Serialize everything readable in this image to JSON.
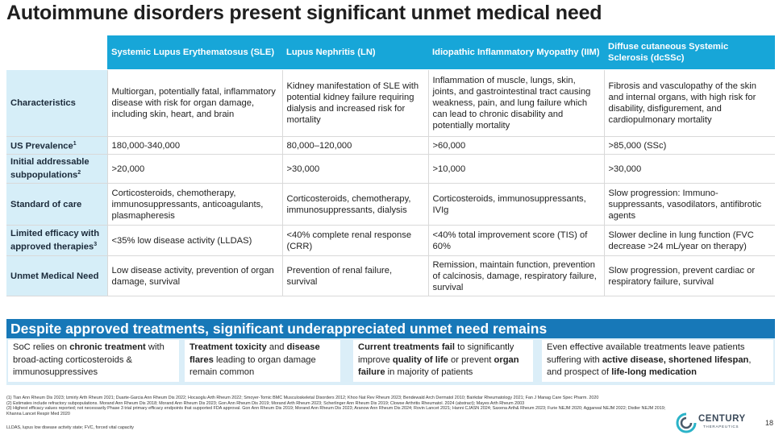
{
  "title": "Autoimmune disorders present significant unmet medical need",
  "table": {
    "headers": [
      "Systemic Lupus Erythematosus (SLE)",
      "Lupus Nephritis (LN)",
      "Idiopathic Inflammatory Myopathy (IIM)",
      "Diffuse cutaneous Systemic Sclerosis (dcSSc)"
    ],
    "rows": [
      {
        "label": "Characteristics",
        "cells": [
          "Multiorgan, potentially fatal, inflammatory disease with risk for organ damage, including skin, heart, and brain",
          "Kidney manifestation of SLE with potential kidney failure requiring dialysis and increased risk for mortality",
          "Inflammation of muscle, lungs, skin, joints, and gastrointestinal tract causing weakness, pain, and lung failure which can lead to chronic disability and potentially mortality",
          "Fibrosis and vasculopathy of the skin and internal organs, with high risk for disability, disfigurement, and cardiopulmonary mortality"
        ]
      },
      {
        "label": "US Prevalence",
        "sup": "1",
        "cells": [
          "180,000-340,000",
          "80,000–120,000",
          ">60,000",
          ">85,000 (SSc)"
        ]
      },
      {
        "label": "Initial addressable subpopulations",
        "sup": "2",
        "cells": [
          ">20,000",
          ">30,000",
          ">10,000",
          ">30,000"
        ]
      },
      {
        "label": "Standard of care",
        "cells": [
          "Corticosteroids, chemotherapy, immunosuppressants, anticoagulants, plasmapheresis",
          "Corticosteroids, chemotherapy, immunosuppressants, dialysis",
          "Corticosteroids, immunosuppressants, IVIg",
          "Slow progression: Immuno-suppressants, vasodilators, antifibrotic agents"
        ]
      },
      {
        "label": "Limited efficacy with approved therapies",
        "sup": "3",
        "cells": [
          "<35% low disease activity (LLDAS)",
          "<40% complete renal response (CRR)",
          "<40% total improvement score (TIS) of 60%",
          "Slower decline in lung function (FVC decrease >24 mL/year on therapy)"
        ]
      },
      {
        "label": "Unmet Medical Need",
        "cells": [
          "Low disease activity, prevention of organ damage, survival",
          "Prevention of renal failure, survival",
          "Remission, maintain function, prevention of calcinosis, damage, respiratory failure, survival",
          "Slow progression, prevent cardiac or respiratory failure, survival"
        ]
      }
    ]
  },
  "banner": "Despite approved treatments, significant underappreciated unmet need remains",
  "boxes": [
    {
      "p1": "SoC relies on ",
      "b1": "chronic treatment",
      "p2": " with broad-acting corticosteroids & immunosuppressives",
      "b2": "",
      "p3": ""
    },
    {
      "p1": "",
      "b1": "Treatment toxicity",
      "p2": " and ",
      "b2": "disease flares",
      "p3": " leading to organ damage remain common"
    },
    {
      "p1": "",
      "b1": "Current treatments fail",
      "p2": " to significantly improve ",
      "b2": "quality of life",
      "p3": " or prevent ",
      "b3": "organ failure",
      "p4": " in majority of patients"
    },
    {
      "p1": "Even effective available treatments leave patients suffering with ",
      "b1": "active disease, shortened lifespan",
      "p2": ", and prospect of ",
      "b2": "life-long medication",
      "p3": ""
    }
  ],
  "footnotes": [
    "(1) Tian Ann Rheum Dis 2023; Izmirly Arth Rheum 2021; Duarte-Garcia Ann Rheum Dis 2022; Hocaoglu Arth Rheum 2022; Smoyer-Tomic BMC Musculoskeletal Disorders 2012; Khoo Nat Rev Rheum 2023; Bendewald Arch Dermatol 2010; Bairkdar Rheumatology 2021; Fan J Manag Care Spec Pharm. 2020",
    "(2) Estimates include refractory subpopulations. Morand Ann Rheum Dis 2018; Morand Ann Rheum Dis 2023; Gon Ann Rheum Dis 2019; Morand Arth Rheum 2023; Scherlinger Ann Rheum Dis 2019; Clowse Arthritis Rheumatol. 2024 (abstract); Mayes Arth Rheum 2003",
    "(3) Highest efficacy values reported; not necessarily Phase 3 trial primary efficacy endpoints that supported FDA approval. Gon Ann Rheum Dis 2019; Morand Ann Rheum Dis 2023; Aranow Ann Rheum Dis 2024; Rovin Lancet 2021; Hanni CJASN 2024; Saxena Arth& Rheum 2023; Furie NEJM 2020; Aggarwal NEJM 2022; Distler NEJM 2019; Khanna Lancet Respir Med 2020"
  ],
  "abbreviations": "LLDAS, lupus low disease activity state; FVC, forced vital capacity",
  "logo": {
    "name": "CENTURY",
    "sub": "THERAPEUTICS"
  },
  "page_number": "18",
  "colors": {
    "header": "#17a6d8",
    "rowhead": "#d6eef8",
    "banner": "#1778b8",
    "boxrow": "#dbeef8"
  }
}
